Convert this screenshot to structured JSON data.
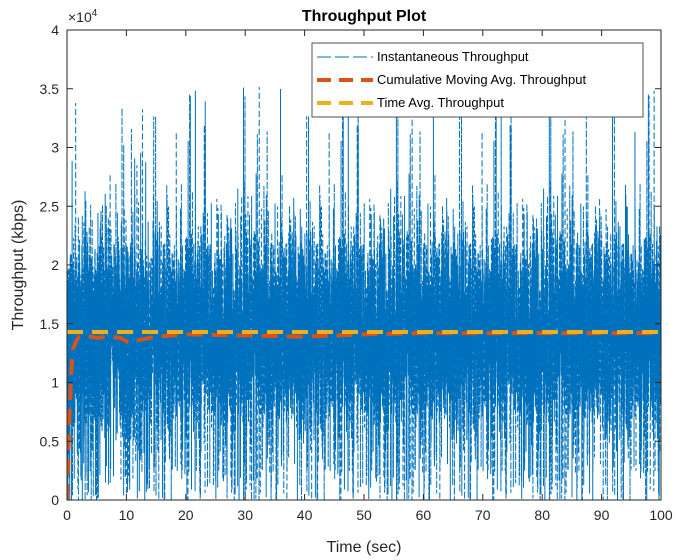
{
  "chart_data": {
    "type": "line",
    "title": "Throughput Plot",
    "xlabel": "Time (sec)",
    "ylabel": "Throughput (kbps)",
    "y_exponent_label": "×10",
    "y_exponent_power": "4",
    "xlim": [
      0,
      100
    ],
    "ylim": [
      0,
      40000
    ],
    "x_ticks": [
      0,
      10,
      20,
      30,
      40,
      50,
      60,
      70,
      80,
      90,
      100
    ],
    "x_tick_labels": [
      "0",
      "10",
      "20",
      "30",
      "40",
      "50",
      "60",
      "70",
      "80",
      "90",
      "100"
    ],
    "y_ticks": [
      0,
      5000,
      10000,
      15000,
      20000,
      25000,
      30000,
      35000,
      40000
    ],
    "y_tick_labels": [
      "0",
      "0.5",
      "1",
      "1.5",
      "2",
      "2.5",
      "3",
      "3.5",
      "4"
    ],
    "grid": false,
    "legend_position": "top-right",
    "series": [
      {
        "name": "Instantaneous Throughput",
        "color": "#0072BD",
        "style": "dashed",
        "kind": "noisy",
        "x_range": [
          0,
          100
        ],
        "sample_count": 10000,
        "mean": 14300,
        "typical_range": [
          6000,
          23000
        ],
        "min": 0,
        "max": 35500
      },
      {
        "name": "Cumulative Moving Avg. Throughput",
        "color": "#D95319",
        "style": "dashed-thick",
        "x": [
          0,
          0.2,
          0.4,
          0.6,
          0.8,
          1.0,
          1.5,
          2,
          3,
          5,
          7,
          9,
          10,
          11,
          12,
          15,
          20,
          30,
          40,
          50,
          60,
          70,
          80,
          90,
          100
        ],
        "y": [
          0,
          3000,
          7000,
          9500,
          11500,
          12800,
          13500,
          13900,
          14000,
          13800,
          13900,
          13800,
          13500,
          13400,
          13600,
          13900,
          14100,
          14000,
          13900,
          14100,
          14200,
          14200,
          14200,
          14200,
          14200
        ]
      },
      {
        "name": "Time Avg. Throughput",
        "color": "#EDB120",
        "style": "dashed-thick",
        "x": [
          0,
          100
        ],
        "y": [
          14300,
          14300
        ]
      }
    ]
  }
}
